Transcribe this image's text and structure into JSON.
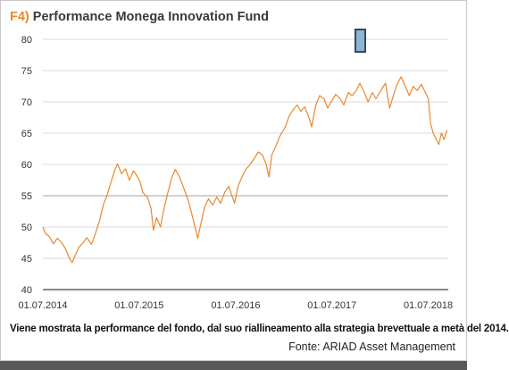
{
  "title": {
    "prefix": "F4)",
    "text": "Performance Monega Innovation Fund"
  },
  "caption": "Viene mostrata la performance del fondo, dal suo riallineamento alla strategia brevettuale a metà del 2014.",
  "source": "Fonte: ARIAD Asset Management",
  "colors": {
    "line": "#e8892f",
    "grid": "#cfcfcf",
    "axis": "#444444",
    "marker": "#8fb4d4",
    "marker_border": "#2e4a5e"
  },
  "chart_data": {
    "type": "line",
    "title": "Performance Monega Innovation Fund",
    "xlabel": "",
    "ylabel": "",
    "ylim": [
      40,
      80
    ],
    "yticks": [
      40,
      45,
      50,
      55,
      60,
      65,
      70,
      75,
      80
    ],
    "xticks": [
      "01.07.2014",
      "01.07.2015",
      "01.07.2016",
      "01.07.2017",
      "01.07.2018"
    ],
    "xlim": [
      "2014-07-01",
      "2018-09-15"
    ],
    "grid": "horizontal",
    "legend": "none",
    "series": [
      {
        "points": [
          [
            "2014-07-01",
            50.0
          ],
          [
            "2014-07-10",
            49.0
          ],
          [
            "2014-07-25",
            48.5
          ],
          [
            "2014-08-10",
            47.3
          ],
          [
            "2014-08-25",
            48.2
          ],
          [
            "2014-09-10",
            47.5
          ],
          [
            "2014-09-25",
            46.5
          ],
          [
            "2014-10-10",
            45.0
          ],
          [
            "2014-10-20",
            44.3
          ],
          [
            "2014-11-01",
            45.5
          ],
          [
            "2014-11-15",
            46.8
          ],
          [
            "2014-12-01",
            47.5
          ],
          [
            "2014-12-15",
            48.3
          ],
          [
            "2015-01-01",
            47.2
          ],
          [
            "2015-01-15",
            48.8
          ],
          [
            "2015-02-01",
            51.0
          ],
          [
            "2015-02-15",
            53.5
          ],
          [
            "2015-03-01",
            55.0
          ],
          [
            "2015-03-15",
            57.0
          ],
          [
            "2015-04-01",
            59.2
          ],
          [
            "2015-04-10",
            60.1
          ],
          [
            "2015-04-25",
            58.5
          ],
          [
            "2015-05-10",
            59.3
          ],
          [
            "2015-05-25",
            57.5
          ],
          [
            "2015-06-10",
            59.0
          ],
          [
            "2015-06-25",
            58.0
          ],
          [
            "2015-07-05",
            57.2
          ],
          [
            "2015-07-15",
            55.5
          ],
          [
            "2015-08-01",
            54.8
          ],
          [
            "2015-08-15",
            53.0
          ],
          [
            "2015-08-24",
            49.5
          ],
          [
            "2015-09-05",
            51.5
          ],
          [
            "2015-09-20",
            50.0
          ],
          [
            "2015-10-01",
            52.5
          ],
          [
            "2015-10-15",
            55.0
          ],
          [
            "2015-11-01",
            57.8
          ],
          [
            "2015-11-15",
            59.2
          ],
          [
            "2015-12-01",
            58.0
          ],
          [
            "2015-12-15",
            56.5
          ],
          [
            "2016-01-05",
            54.0
          ],
          [
            "2016-01-20",
            51.5
          ],
          [
            "2016-02-08",
            48.2
          ],
          [
            "2016-02-20",
            50.5
          ],
          [
            "2016-03-05",
            53.2
          ],
          [
            "2016-03-20",
            54.5
          ],
          [
            "2016-04-05",
            53.5
          ],
          [
            "2016-04-20",
            54.8
          ],
          [
            "2016-05-05",
            53.8
          ],
          [
            "2016-05-20",
            55.5
          ],
          [
            "2016-06-05",
            56.5
          ],
          [
            "2016-06-15",
            55.2
          ],
          [
            "2016-06-27",
            53.8
          ],
          [
            "2016-07-10",
            56.5
          ],
          [
            "2016-07-25",
            58.0
          ],
          [
            "2016-08-10",
            59.3
          ],
          [
            "2016-08-25",
            60.0
          ],
          [
            "2016-09-10",
            61.0
          ],
          [
            "2016-09-25",
            62.0
          ],
          [
            "2016-10-10",
            61.5
          ],
          [
            "2016-10-25",
            60.0
          ],
          [
            "2016-11-04",
            58.0
          ],
          [
            "2016-11-15",
            61.5
          ],
          [
            "2016-12-01",
            63.0
          ],
          [
            "2016-12-15",
            64.5
          ],
          [
            "2017-01-05",
            66.0
          ],
          [
            "2017-01-20",
            67.8
          ],
          [
            "2017-02-05",
            68.8
          ],
          [
            "2017-02-20",
            69.5
          ],
          [
            "2017-03-05",
            68.5
          ],
          [
            "2017-03-20",
            69.2
          ],
          [
            "2017-04-05",
            67.5
          ],
          [
            "2017-04-15",
            66.0
          ],
          [
            "2017-05-01",
            69.5
          ],
          [
            "2017-05-15",
            71.0
          ],
          [
            "2017-06-01",
            70.5
          ],
          [
            "2017-06-15",
            69.0
          ],
          [
            "2017-07-01",
            70.2
          ],
          [
            "2017-07-15",
            71.2
          ],
          [
            "2017-08-01",
            70.5
          ],
          [
            "2017-08-15",
            69.5
          ],
          [
            "2017-09-01",
            71.5
          ],
          [
            "2017-09-15",
            71.0
          ],
          [
            "2017-10-01",
            71.8
          ],
          [
            "2017-10-15",
            73.0
          ],
          [
            "2017-11-01",
            71.5
          ],
          [
            "2017-11-15",
            70.0
          ],
          [
            "2017-12-01",
            71.5
          ],
          [
            "2017-12-15",
            70.5
          ],
          [
            "2018-01-05",
            72.0
          ],
          [
            "2018-01-20",
            73.0
          ],
          [
            "2018-02-05",
            69.0
          ],
          [
            "2018-02-20",
            71.2
          ],
          [
            "2018-03-05",
            72.8
          ],
          [
            "2018-03-20",
            74.0
          ],
          [
            "2018-04-05",
            72.5
          ],
          [
            "2018-04-20",
            71.0
          ],
          [
            "2018-05-05",
            72.5
          ],
          [
            "2018-05-20",
            71.8
          ],
          [
            "2018-06-05",
            72.8
          ],
          [
            "2018-06-20",
            71.5
          ],
          [
            "2018-07-01",
            70.5
          ],
          [
            "2018-07-10",
            66.5
          ],
          [
            "2018-07-20",
            65.0
          ],
          [
            "2018-08-01",
            64.0
          ],
          [
            "2018-08-10",
            63.2
          ],
          [
            "2018-08-20",
            65.0
          ],
          [
            "2018-08-30",
            64.0
          ],
          [
            "2018-09-10",
            65.5
          ]
        ]
      }
    ]
  }
}
